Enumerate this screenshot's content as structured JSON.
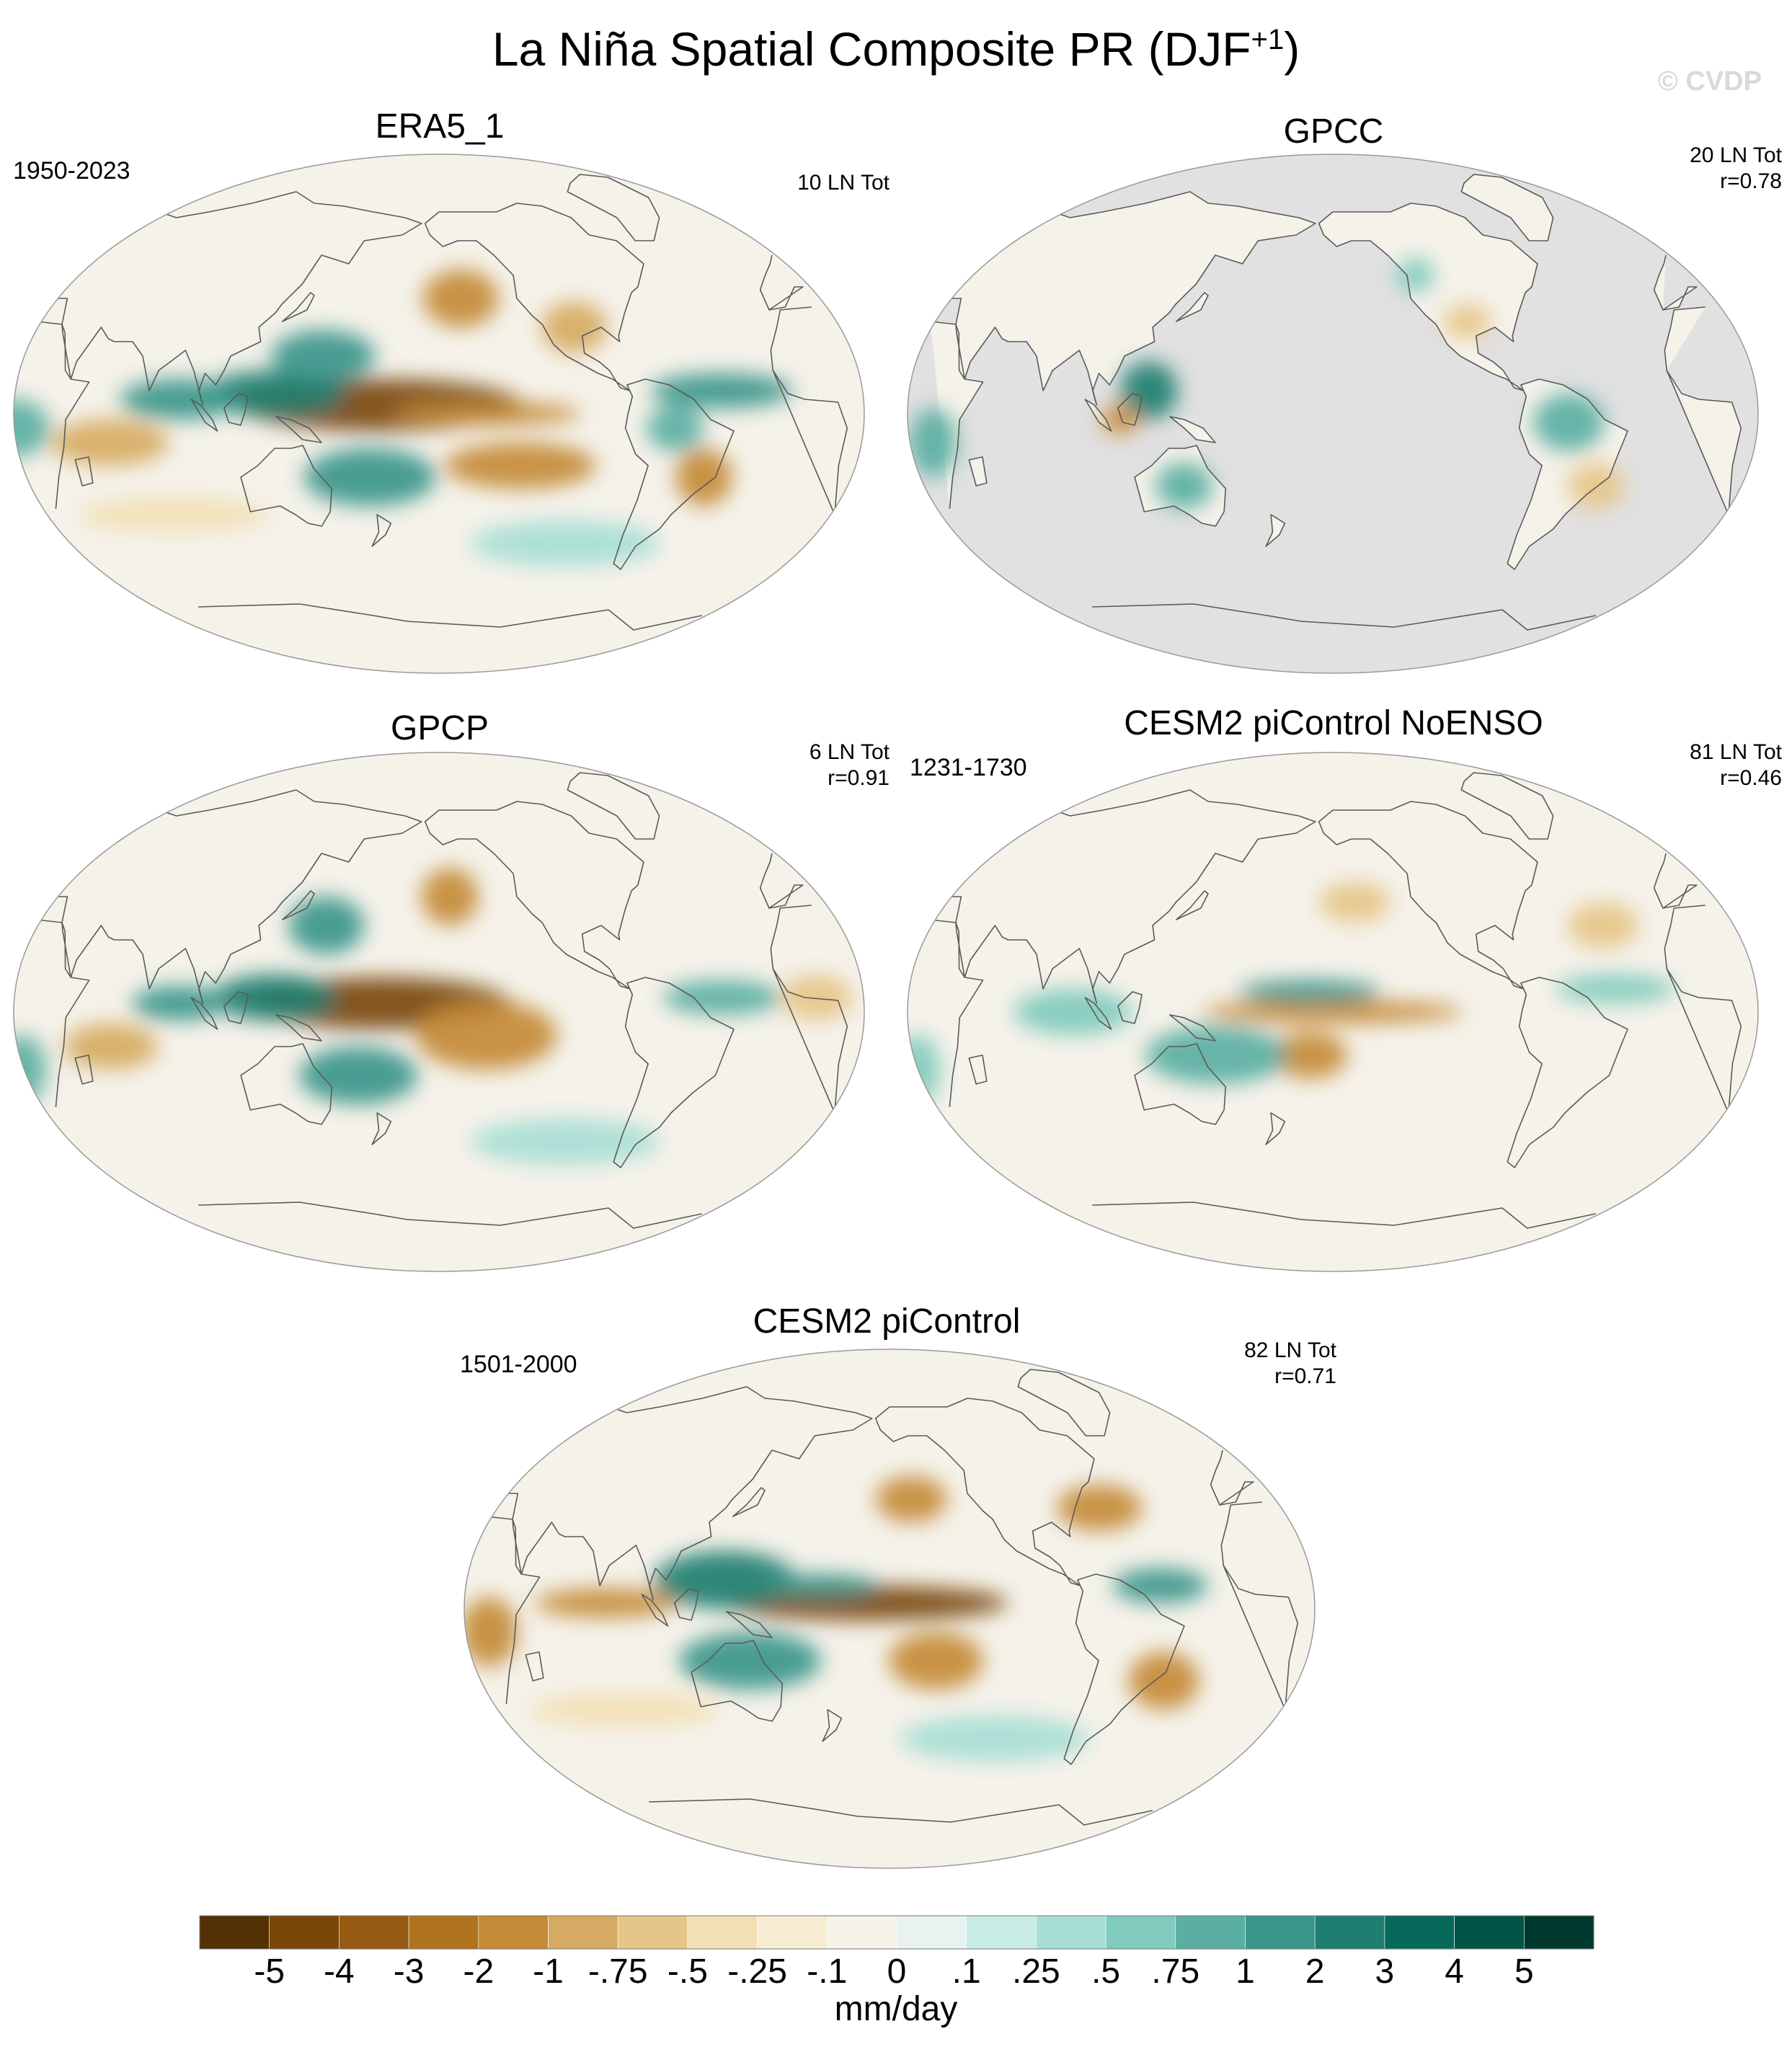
{
  "figure": {
    "title_main": "La Niña Spatial Composite PR (DJF",
    "title_sup": "+1",
    "title_end": ")",
    "watermark": "© CVDP"
  },
  "colors": {
    "land_mask": "#e1e1e1",
    "coast": "#5a5a5a"
  },
  "chart_data": {
    "type": "heatmap",
    "colorbar": {
      "units": "mm/day",
      "tick_labels": [
        "-5",
        "-4",
        "-3",
        "-2",
        "-1",
        "-.75",
        "-.5",
        "-.25",
        "-.1",
        "0",
        ".1",
        ".25",
        ".5",
        ".75",
        "1",
        "2",
        "3",
        "4",
        "5"
      ],
      "colors": [
        "#543005",
        "#7a4709",
        "#975a12",
        "#b0741f",
        "#c48a38",
        "#d6aa62",
        "#e6c688",
        "#f2dfb4",
        "#f6ecd4",
        "#f5f2ea",
        "#e8f3f1",
        "#c9ebe5",
        "#a7ded5",
        "#80cbbd",
        "#5aafa2",
        "#3a968a",
        "#1e7e70",
        "#07695a",
        "#005546",
        "#00382e"
      ]
    },
    "panels": [
      {
        "key": "era5",
        "title": "ERA5_1",
        "years": "1950-2023",
        "info": "10 LN Tot",
        "land_masked": false,
        "blobs": [
          {
            "lon": 175,
            "lat": 3,
            "rx": 60,
            "ry": 9,
            "v": -5
          },
          {
            "lon": -140,
            "lat": 0,
            "rx": 40,
            "ry": 4,
            "v": -2
          },
          {
            "lon": -125,
            "lat": -18,
            "rx": 32,
            "ry": 8,
            "v": -1
          },
          {
            "lon": 130,
            "lat": 7,
            "rx": 30,
            "ry": 8,
            "v": 3
          },
          {
            "lon": 150,
            "lat": 20,
            "rx": 22,
            "ry": 9,
            "v": 2
          },
          {
            "lon": 170,
            "lat": -22,
            "rx": 28,
            "ry": 10,
            "v": 2
          },
          {
            "lon": 90,
            "lat": 5,
            "rx": 25,
            "ry": 7,
            "v": 2
          },
          {
            "lon": -40,
            "lat": 8,
            "rx": 30,
            "ry": 6,
            "v": 2
          },
          {
            "lon": -60,
            "lat": -5,
            "rx": 12,
            "ry": 8,
            "v": 1
          },
          {
            "lon": -150,
            "lat": 40,
            "rx": 16,
            "ry": 10,
            "v": -1
          },
          {
            "lon": -100,
            "lat": 30,
            "rx": 14,
            "ry": 9,
            "v": -0.75
          },
          {
            "lon": -45,
            "lat": -22,
            "rx": 12,
            "ry": 10,
            "v": -1
          },
          {
            "lon": 60,
            "lat": -10,
            "rx": 25,
            "ry": 8,
            "v": -0.75
          },
          {
            "lon": 20,
            "lat": -5,
            "rx": 15,
            "ry": 10,
            "v": 1
          },
          {
            "lon": 80,
            "lat": -35,
            "rx": 40,
            "ry": 6,
            "v": -0.25
          },
          {
            "lon": -100,
            "lat": -45,
            "rx": 40,
            "ry": 8,
            "v": 0.25
          }
        ]
      },
      {
        "key": "gpcc",
        "title": "GPCC",
        "years": "",
        "info": "20 LN Tot\nr=0.78",
        "land_masked": true,
        "blobs": [
          {
            "lon": 122,
            "lat": 8,
            "rx": 12,
            "ry": 10,
            "v": 3
          },
          {
            "lon": 135,
            "lat": -25,
            "rx": 12,
            "ry": 8,
            "v": 0.75
          },
          {
            "lon": -60,
            "lat": -3,
            "rx": 15,
            "ry": 10,
            "v": 1
          },
          {
            "lon": -45,
            "lat": -25,
            "rx": 12,
            "ry": 8,
            "v": -0.5
          },
          {
            "lon": -100,
            "lat": 32,
            "rx": 10,
            "ry": 6,
            "v": -0.5
          },
          {
            "lon": -120,
            "lat": 48,
            "rx": 8,
            "ry": 6,
            "v": 0.5
          },
          {
            "lon": 30,
            "lat": -10,
            "rx": 10,
            "ry": 12,
            "v": 1
          },
          {
            "lon": 110,
            "lat": -2,
            "rx": 8,
            "ry": 5,
            "v": -1
          }
        ]
      },
      {
        "key": "gpcp",
        "title": "GPCP",
        "years": "",
        "info": "6 LN Tot\nr=0.91",
        "land_masked": false,
        "blobs": [
          {
            "lon": 175,
            "lat": 3,
            "rx": 55,
            "ry": 9,
            "v": -5
          },
          {
            "lon": -140,
            "lat": -8,
            "rx": 30,
            "ry": 12,
            "v": -1
          },
          {
            "lon": 130,
            "lat": 5,
            "rx": 26,
            "ry": 8,
            "v": 3
          },
          {
            "lon": 150,
            "lat": 30,
            "rx": 16,
            "ry": 10,
            "v": 2
          },
          {
            "lon": 165,
            "lat": -22,
            "rx": 25,
            "ry": 10,
            "v": 2
          },
          {
            "lon": 90,
            "lat": 3,
            "rx": 20,
            "ry": 6,
            "v": 2
          },
          {
            "lon": -40,
            "lat": 5,
            "rx": 25,
            "ry": 6,
            "v": 1
          },
          {
            "lon": -155,
            "lat": 40,
            "rx": 12,
            "ry": 10,
            "v": -1
          },
          {
            "lon": 60,
            "lat": -12,
            "rx": 20,
            "ry": 8,
            "v": -0.75
          },
          {
            "lon": 0,
            "lat": 5,
            "rx": 15,
            "ry": 8,
            "v": -0.5
          },
          {
            "lon": 20,
            "lat": -20,
            "rx": 10,
            "ry": 12,
            "v": 1
          },
          {
            "lon": -100,
            "lat": -45,
            "rx": 40,
            "ry": 8,
            "v": 0.25
          }
        ]
      },
      {
        "key": "cesm_noenso",
        "title": "CESM2 piControl NoENSO",
        "years": "1231-1730",
        "info": "81 LN Tot\nr=0.46",
        "land_masked": false,
        "blobs": [
          {
            "lon": -160,
            "lat": 0,
            "rx": 55,
            "ry": 4,
            "v": -2
          },
          {
            "lon": -170,
            "lat": -15,
            "rx": 16,
            "ry": 8,
            "v": -1
          },
          {
            "lon": -170,
            "lat": 7,
            "rx": 30,
            "ry": 4,
            "v": 2
          },
          {
            "lon": 150,
            "lat": -15,
            "rx": 30,
            "ry": 10,
            "v": 0.75
          },
          {
            "lon": 90,
            "lat": 0,
            "rx": 25,
            "ry": 8,
            "v": 0.5
          },
          {
            "lon": -150,
            "lat": 38,
            "rx": 15,
            "ry": 7,
            "v": -0.5
          },
          {
            "lon": -40,
            "lat": 30,
            "rx": 15,
            "ry": 8,
            "v": -0.5
          },
          {
            "lon": -40,
            "lat": 8,
            "rx": 25,
            "ry": 5,
            "v": 0.5
          },
          {
            "lon": 20,
            "lat": -20,
            "rx": 10,
            "ry": 12,
            "v": 0.5
          }
        ]
      },
      {
        "key": "cesm",
        "title": "CESM2 piControl",
        "years": "1501-2000",
        "info": "82 LN Tot\nr=0.71",
        "land_masked": false,
        "blobs": [
          {
            "lon": -170,
            "lat": 2,
            "rx": 60,
            "ry": 6,
            "v": -5
          },
          {
            "lon": -140,
            "lat": -18,
            "rx": 20,
            "ry": 10,
            "v": -1
          },
          {
            "lon": 130,
            "lat": 10,
            "rx": 30,
            "ry": 10,
            "v": 3
          },
          {
            "lon": 140,
            "lat": -18,
            "rx": 30,
            "ry": 10,
            "v": 2
          },
          {
            "lon": 80,
            "lat": 2,
            "rx": 30,
            "ry": 5,
            "v": -2
          },
          {
            "lon": 170,
            "lat": 8,
            "rx": 25,
            "ry": 4,
            "v": 2
          },
          {
            "lon": -150,
            "lat": 38,
            "rx": 15,
            "ry": 8,
            "v": -1
          },
          {
            "lon": -65,
            "lat": 35,
            "rx": 18,
            "ry": 8,
            "v": -1
          },
          {
            "lon": -45,
            "lat": 8,
            "rx": 20,
            "ry": 6,
            "v": 2
          },
          {
            "lon": -40,
            "lat": -25,
            "rx": 15,
            "ry": 10,
            "v": -1
          },
          {
            "lon": 30,
            "lat": -8,
            "rx": 12,
            "ry": 12,
            "v": -1
          },
          {
            "lon": 80,
            "lat": -35,
            "rx": 40,
            "ry": 6,
            "v": -0.25
          },
          {
            "lon": -110,
            "lat": -45,
            "rx": 40,
            "ry": 8,
            "v": 0.25
          }
        ]
      }
    ]
  }
}
